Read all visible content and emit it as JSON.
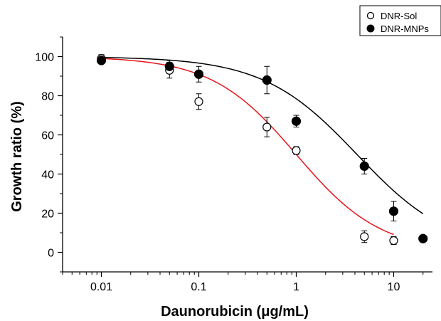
{
  "chart_data": {
    "type": "scatter",
    "xlabel": "Daunorubicin (μg/mL)",
    "ylabel": "Growth ratio (%)",
    "xscale": "log",
    "xlim": [
      0.004,
      25
    ],
    "ylim": [
      -10,
      110
    ],
    "x_ticks": [
      0.01,
      0.1,
      1,
      10
    ],
    "x_tick_labels": [
      "0.01",
      "0.1",
      "1",
      "10"
    ],
    "y_ticks": [
      0,
      20,
      40,
      60,
      80,
      100
    ],
    "y_tick_labels": [
      "0",
      "20",
      "40",
      "60",
      "80",
      "100"
    ],
    "grid": false,
    "legend_position": "top-right",
    "series": [
      {
        "name": "DNR-Sol",
        "marker": "open-circle",
        "color": "#000000",
        "fit_color": "#e8141c",
        "x": [
          0.01,
          0.05,
          0.1,
          0.5,
          1,
          5,
          10
        ],
        "y": [
          99,
          93,
          77,
          64,
          52,
          8,
          6
        ],
        "err": [
          2,
          4,
          4,
          5,
          2,
          3,
          2
        ],
        "fit": {
          "top": 100,
          "bottom": 0,
          "ec50": 1.0,
          "hill": 1.0
        }
      },
      {
        "name": "DNR-MNPs",
        "marker": "filled-circle",
        "color": "#000000",
        "fit_color": "#000000",
        "x": [
          0.01,
          0.05,
          0.1,
          0.5,
          1,
          5,
          10,
          20
        ],
        "y": [
          98,
          95,
          91,
          88,
          67,
          44,
          21,
          7
        ],
        "err": [
          1,
          3,
          4,
          7,
          3,
          4,
          5,
          1
        ],
        "fit": {
          "top": 100,
          "bottom": 0,
          "ec50": 4.2,
          "hill": 0.9
        }
      }
    ]
  }
}
